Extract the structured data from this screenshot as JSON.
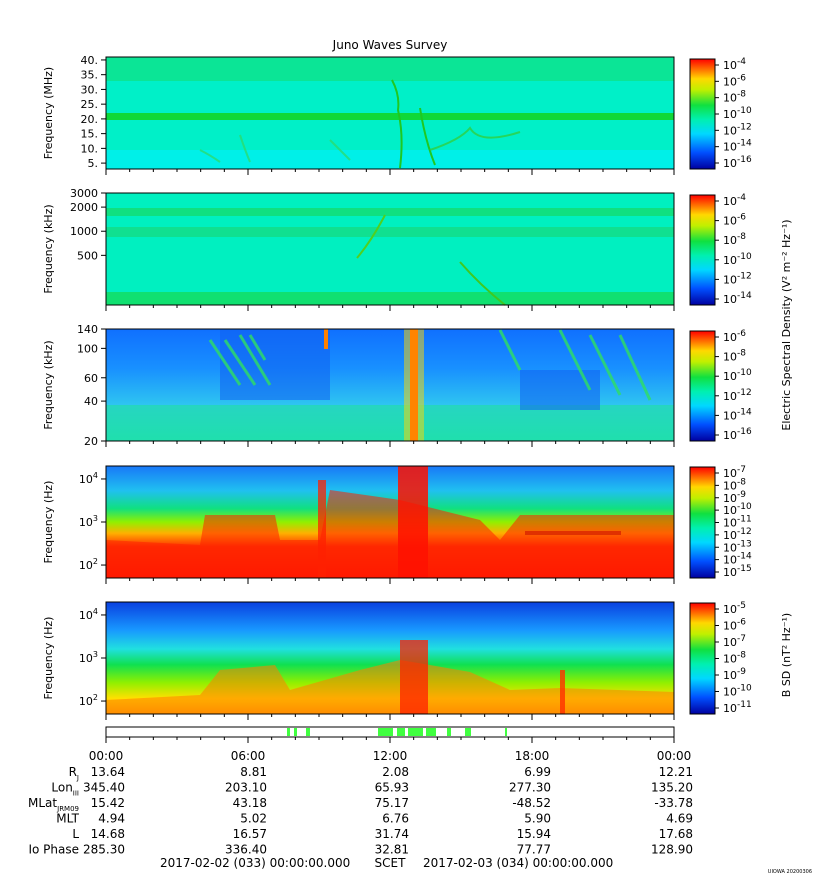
{
  "title": "Juno Waves Survey",
  "stamp": "UIOWA 20200306",
  "chart_data": [
    {
      "type": "heatmap",
      "panel": "HFR high",
      "ylabel": "Frequency (MHz)",
      "yscale": "linear",
      "ylim": [
        3,
        41
      ],
      "yticks": [
        "40.",
        "35.",
        "30.",
        "25.",
        "20.",
        "15.",
        "10.",
        "5."
      ],
      "ytick_values": [
        40,
        35,
        30,
        25,
        20,
        15,
        10,
        5
      ],
      "colorbar": {
        "labels": [
          "-4",
          "-6",
          "-8",
          "-10",
          "-12",
          "-14",
          "-16"
        ],
        "label": ""
      }
    },
    {
      "type": "heatmap",
      "panel": "HFR low",
      "ylabel": "Frequency (kHz)",
      "yscale": "log",
      "ylim": [
        120,
        3000
      ],
      "yticks": [
        "3000",
        "2000",
        "1000",
        "500"
      ],
      "ytick_values": [
        3000,
        2000,
        1000,
        500
      ],
      "colorbar": {
        "labels": [
          "-4",
          "-6",
          "-8",
          "-10",
          "-12",
          "-14"
        ],
        "label": "Electric Spectral Density (V² m⁻² Hz⁻¹)"
      }
    },
    {
      "type": "heatmap",
      "panel": "LFR high",
      "ylabel": "Frequency (kHz)",
      "yscale": "log",
      "ylim": [
        20,
        140
      ],
      "yticks": [
        "140",
        "100",
        "60",
        "40",
        "20"
      ],
      "ytick_values": [
        140,
        100,
        60,
        40,
        20
      ],
      "colorbar": {
        "labels": [
          "-6",
          "-8",
          "-10",
          "-12",
          "-14",
          "-16"
        ],
        "label": ""
      }
    },
    {
      "type": "heatmap",
      "panel": "LFR low E",
      "ylabel": "Frequency (Hz)",
      "yscale": "log",
      "ylim": [
        50,
        20000
      ],
      "yticks": [
        "4",
        "3",
        "2"
      ],
      "ytick_values": [
        10000,
        1000,
        100
      ],
      "colorbar": {
        "labels": [
          "-7",
          "-8",
          "-9",
          "-10",
          "-11",
          "-12",
          "-13",
          "-14",
          "-15"
        ],
        "label": ""
      }
    },
    {
      "type": "heatmap",
      "panel": "LFR low B",
      "ylabel": "Frequency (Hz)",
      "yscale": "log",
      "ylim": [
        50,
        20000
      ],
      "yticks": [
        "4",
        "3",
        "2"
      ],
      "ytick_values": [
        10000,
        1000,
        100
      ],
      "colorbar": {
        "labels": [
          "-5",
          "-6",
          "-7",
          "-8",
          "-9",
          "-10",
          "-11"
        ],
        "label": "B SD (nT² Hz⁻¹)"
      }
    }
  ],
  "colorbar_base": "10",
  "x_ticks": [
    "00:00",
    "06:00",
    "12:00",
    "18:00",
    "00:00"
  ],
  "ephemeris": {
    "rows": [
      {
        "label": "R",
        "sub": "J",
        "values": [
          "13.64",
          "8.81",
          "2.08",
          "6.99",
          "12.21"
        ]
      },
      {
        "label": "Lon",
        "sub": "III",
        "values": [
          "345.40",
          "203.10",
          "65.93",
          "277.30",
          "135.20"
        ]
      },
      {
        "label": "MLat",
        "sub": "JRM09",
        "values": [
          "15.42",
          "43.18",
          "75.17",
          "-48.52",
          "-33.78"
        ]
      },
      {
        "label": "MLT",
        "sub": "",
        "values": [
          "4.94",
          "5.02",
          "6.76",
          "5.90",
          "4.69"
        ]
      },
      {
        "label": "L",
        "sub": "",
        "values": [
          "14.68",
          "16.57",
          "31.74",
          "15.94",
          "17.68"
        ]
      },
      {
        "label": "Io Phase",
        "sub": "",
        "values": [
          "285.30",
          "336.40",
          "32.81",
          "77.77",
          "128.90"
        ]
      }
    ]
  },
  "scet_start": "2017-02-02 (033) 00:00:00.000",
  "scet_label": "SCET",
  "scet_end": "2017-02-03 (034) 00:00:00.000",
  "colors": {
    "cyan": "#00f0d8",
    "green": "#10e040",
    "yellow": "#ffe000",
    "orange": "#ff8000",
    "red": "#ff1800",
    "blue": "#1070ff",
    "darkblue": "#0000c0",
    "mode_bar": "#40ff40"
  }
}
